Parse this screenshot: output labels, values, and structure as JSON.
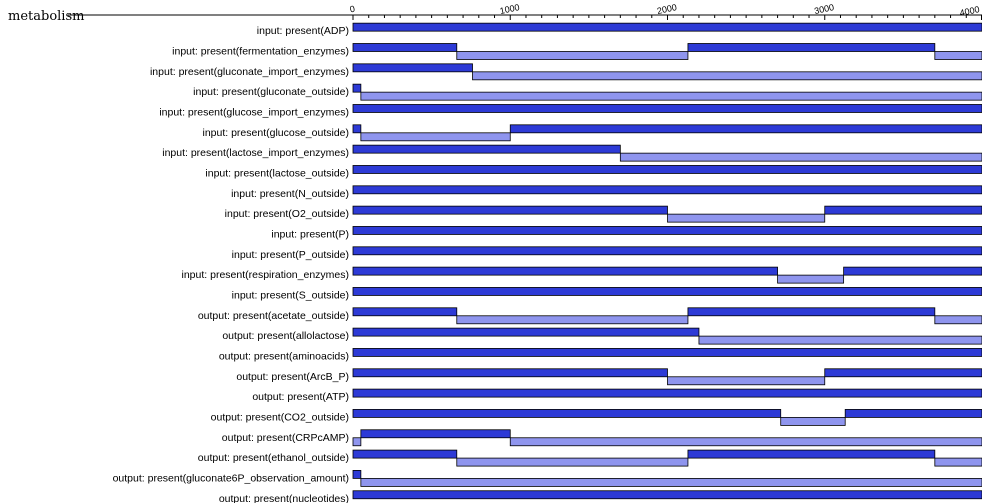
{
  "title": "metabolism",
  "colors": {
    "high": "#2d3ad6",
    "low": "#8f95ee",
    "edge": "#000000"
  },
  "chart_data": {
    "type": "timeline",
    "xlim": [
      0,
      4000
    ],
    "xticks": [
      0,
      1000,
      2000,
      3000,
      4000
    ],
    "tick_labels": [
      "0",
      "1000",
      "2000",
      "3000",
      "4000"
    ],
    "grid": false,
    "rows": [
      {
        "label": "input: present(ADP)",
        "segments": [
          [
            0,
            4000,
            1
          ]
        ]
      },
      {
        "label": "input: present(fermentation_enzymes)",
        "segments": [
          [
            0,
            660,
            1
          ],
          [
            660,
            2130,
            0
          ],
          [
            2130,
            3700,
            1
          ],
          [
            3700,
            4000,
            0
          ]
        ]
      },
      {
        "label": "input: present(gluconate_import_enzymes)",
        "segments": [
          [
            0,
            760,
            1
          ],
          [
            760,
            4000,
            0
          ]
        ]
      },
      {
        "label": "input: present(gluconate_outside)",
        "segments": [
          [
            0,
            50,
            1
          ],
          [
            50,
            4000,
            0
          ]
        ]
      },
      {
        "label": "input: present(glucose_import_enzymes)",
        "segments": [
          [
            0,
            4000,
            1
          ]
        ]
      },
      {
        "label": "input: present(glucose_outside)",
        "segments": [
          [
            0,
            50,
            1
          ],
          [
            50,
            1000,
            0
          ],
          [
            1000,
            4000,
            1
          ]
        ]
      },
      {
        "label": "input: present(lactose_import_enzymes)",
        "segments": [
          [
            0,
            1700,
            1
          ],
          [
            1700,
            4000,
            0
          ]
        ]
      },
      {
        "label": "input: present(lactose_outside)",
        "segments": [
          [
            0,
            4000,
            1
          ]
        ]
      },
      {
        "label": "input: present(N_outside)",
        "segments": [
          [
            0,
            4000,
            1
          ]
        ]
      },
      {
        "label": "input: present(O2_outside)",
        "segments": [
          [
            0,
            2000,
            1
          ],
          [
            2000,
            3000,
            0
          ],
          [
            3000,
            4000,
            1
          ]
        ]
      },
      {
        "label": "input: present(P)",
        "segments": [
          [
            0,
            4000,
            1
          ]
        ]
      },
      {
        "label": "input: present(P_outside)",
        "segments": [
          [
            0,
            4000,
            1
          ]
        ]
      },
      {
        "label": "input: present(respiration_enzymes)",
        "segments": [
          [
            0,
            2700,
            1
          ],
          [
            2700,
            3120,
            0
          ],
          [
            3120,
            4000,
            1
          ]
        ]
      },
      {
        "label": "input: present(S_outside)",
        "segments": [
          [
            0,
            4000,
            1
          ]
        ]
      },
      {
        "label": "output: present(acetate_outside)",
        "segments": [
          [
            0,
            660,
            1
          ],
          [
            660,
            2130,
            0
          ],
          [
            2130,
            3700,
            1
          ],
          [
            3700,
            4000,
            0
          ]
        ]
      },
      {
        "label": "output: present(allolactose)",
        "segments": [
          [
            0,
            2200,
            1
          ],
          [
            2200,
            4000,
            0
          ]
        ]
      },
      {
        "label": "output: present(aminoacids)",
        "segments": [
          [
            0,
            4000,
            1
          ]
        ]
      },
      {
        "label": "output: present(ArcB_P)",
        "segments": [
          [
            0,
            2000,
            1
          ],
          [
            2000,
            3000,
            0
          ],
          [
            3000,
            4000,
            1
          ]
        ]
      },
      {
        "label": "output: present(ATP)",
        "segments": [
          [
            0,
            4000,
            1
          ]
        ]
      },
      {
        "label": "output: present(CO2_outside)",
        "segments": [
          [
            0,
            2720,
            1
          ],
          [
            2720,
            3130,
            0
          ],
          [
            3130,
            4000,
            1
          ]
        ]
      },
      {
        "label": "output: present(CRPcAMP)",
        "segments": [
          [
            0,
            50,
            0
          ],
          [
            50,
            1000,
            1
          ],
          [
            1000,
            4000,
            0
          ]
        ]
      },
      {
        "label": "output: present(ethanol_outside)",
        "segments": [
          [
            0,
            660,
            1
          ],
          [
            660,
            2130,
            0
          ],
          [
            2130,
            3700,
            1
          ],
          [
            3700,
            4000,
            0
          ]
        ]
      },
      {
        "label": "output: present(gluconate6P_observation_amount)",
        "segments": [
          [
            0,
            50,
            1
          ],
          [
            50,
            4000,
            0
          ]
        ]
      },
      {
        "label": "output: present(nucleotides)",
        "segments": [
          [
            0,
            4000,
            1
          ]
        ]
      }
    ]
  }
}
